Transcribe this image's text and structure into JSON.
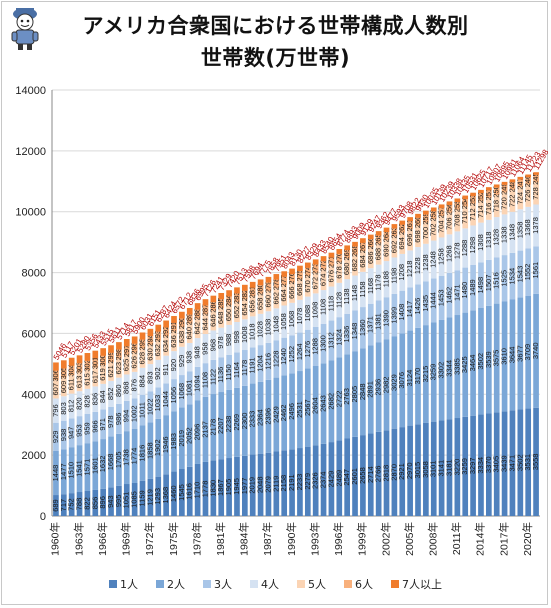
{
  "header": {
    "title_line1": "アメリカ合衆国における世帯構成人数別",
    "title_line2": "世帯数(万世帯)"
  },
  "chart_data": {
    "type": "bar",
    "stacked": true,
    "unit": "万世帯",
    "categories": [
      1960,
      1961,
      1962,
      1963,
      1964,
      1965,
      1966,
      1967,
      1968,
      1969,
      1970,
      1971,
      1972,
      1973,
      1974,
      1975,
      1976,
      1977,
      1978,
      1979,
      1980,
      1981,
      1982,
      1983,
      1984,
      1985,
      1986,
      1987,
      1988,
      1989,
      1990,
      1991,
      1992,
      1993,
      1994,
      1995,
      1996,
      1997,
      1998,
      1999,
      2000,
      2001,
      2002,
      2003,
      2004,
      2005,
      2006,
      2007,
      2008,
      2009,
      2010,
      2011,
      2012,
      2013,
      2014,
      2015,
      2016,
      2017,
      2018,
      2019,
      2020,
      2021
    ],
    "x_tick_labels": [
      "1960年",
      "1963年",
      "1966年",
      "1969年",
      "1972年",
      "1975年",
      "1978年",
      "1981年",
      "1984年",
      "1987年",
      "1990年",
      "1993年",
      "1996年",
      "1999年",
      "2002年",
      "2005年",
      "2008年",
      "2011年",
      "2014年",
      "2017年",
      "2020年"
    ],
    "y_ticks": [
      "0",
      "2000",
      "4000",
      "6000",
      "8000",
      "10000",
      "12000",
      "14000"
    ],
    "ylim": [
      0,
      14000
    ],
    "grid": true,
    "legend_position": "bottom",
    "series": [
      {
        "name": "1人",
        "color": "#4f81bd",
        "values": [
          689,
          717,
          752,
          788,
          822,
          856,
          896,
          943,
          995,
          1051,
          1085,
          1159,
          1219,
          1293,
          1368,
          1460,
          1545,
          1616,
          1710,
          1778,
          1830,
          1867,
          1905,
          1945,
          1977,
          2019,
          2048,
          2079,
          2119,
          2158,
          2191,
          2233,
          2279,
          2326,
          2374,
          2429,
          2489,
          2547,
          2601,
          2658,
          2714,
          2766,
          2818,
          2870,
          2921,
          2970,
          3015,
          3058,
          3101,
          3141,
          3181,
          3220,
          3259,
          3297,
          3334,
          3370,
          3405,
          3439,
          3471,
          3502,
          3531,
          3558
        ]
      },
      {
        "name": "2人",
        "color": "#7ba7d7",
        "values": [
          1448,
          1477,
          1510,
          1541,
          1571,
          1601,
          1632,
          1668,
          1705,
          1738,
          1774,
          1816,
          1858,
          1902,
          1946,
          1983,
          2019,
          2052,
          2096,
          2137,
          2178,
          2207,
          2238,
          2269,
          2300,
          2333,
          2364,
          2396,
          2429,
          2462,
          2496,
          2531,
          2567,
          2604,
          2643,
          2682,
          2722,
          2763,
          2805,
          2848,
          2891,
          2936,
          2982,
          3029,
          3076,
          3124,
          3170,
          3215,
          3259,
          3302,
          3344,
          3385,
          3425,
          3464,
          3502,
          3539,
          3575,
          3610,
          3644,
          3677,
          3709,
          3740
        ]
      },
      {
        "name": "3人",
        "color": "#a9c6e8",
        "values": [
          929,
          938,
          947,
          953,
          959,
          966,
          971,
          978,
          986,
          994,
          1002,
          1011,
          1022,
          1033,
          1044,
          1056,
          1068,
          1081,
          1094,
          1108,
          1122,
          1136,
          1150,
          1164,
          1178,
          1191,
          1204,
          1216,
          1228,
          1240,
          1252,
          1264,
          1276,
          1288,
          1300,
          1312,
          1324,
          1336,
          1348,
          1360,
          1371,
          1381,
          1390,
          1399,
          1408,
          1417,
          1426,
          1435,
          1444,
          1453,
          1462,
          1471,
          1480,
          1489,
          1498,
          1507,
          1516,
          1525,
          1534,
          1543,
          1552,
          1561
        ]
      },
      {
        "name": "4人",
        "color": "#d5e2f2",
        "values": [
          796,
          803,
          812,
          820,
          828,
          836,
          844,
          852,
          860,
          868,
          876,
          884,
          893,
          902,
          911,
          920,
          929,
          938,
          948,
          958,
          968,
          978,
          988,
          998,
          1008,
          1018,
          1028,
          1038,
          1048,
          1058,
          1068,
          1078,
          1088,
          1098,
          1108,
          1118,
          1128,
          1138,
          1148,
          1158,
          1168,
          1178,
          1188,
          1198,
          1208,
          1218,
          1228,
          1238,
          1248,
          1258,
          1268,
          1278,
          1288,
          1298,
          1308,
          1318,
          1328,
          1338,
          1348,
          1358,
          1368,
          1378
        ]
      },
      {
        "name": "5人",
        "color": "#fbd4b4",
        "values": [
          607,
          609,
          611,
          613,
          615,
          617,
          619,
          621,
          623,
          625,
          626,
          628,
          630,
          632,
          634,
          636,
          638,
          640,
          642,
          644,
          646,
          648,
          650,
          652,
          654,
          656,
          658,
          660,
          662,
          664,
          666,
          668,
          670,
          672,
          674,
          676,
          678,
          680,
          682,
          684,
          686,
          688,
          690,
          692,
          694,
          696,
          698,
          700,
          702,
          704,
          706,
          708,
          710,
          712,
          714,
          716,
          718,
          720,
          722,
          724,
          726,
          728
        ]
      },
      {
        "name": "6人",
        "color": "#f8b07c",
        "values": [
          306,
          305,
          304,
          303,
          302,
          301,
          300,
          299,
          298,
          297,
          296,
          295,
          294,
          293,
          292,
          291,
          290,
          289,
          288,
          287,
          286,
          285,
          284,
          283,
          282,
          281,
          280,
          279,
          278,
          277,
          276,
          275,
          274,
          273,
          272,
          271,
          270,
          269,
          268,
          267,
          266,
          265,
          264,
          263,
          262,
          261,
          260,
          259,
          258,
          257,
          256,
          255,
          254,
          253,
          252,
          251,
          250,
          249,
          248,
          247,
          246,
          245
        ]
      },
      {
        "name": "7人以上",
        "color": "#f07c2c",
        "values": [
          271,
          268,
          265,
          262,
          259,
          256,
          253,
          250,
          247,
          244,
          241,
          238,
          235,
          232,
          229,
          226,
          223,
          220,
          217,
          214,
          211,
          208,
          205,
          202,
          199,
          196,
          193,
          190,
          187,
          184,
          181,
          178,
          175,
          172,
          169,
          166,
          163,
          160,
          157,
          154,
          151,
          148,
          145,
          142,
          139,
          136,
          133,
          130,
          127,
          124,
          121,
          118,
          115,
          112,
          109,
          106,
          103,
          100,
          97,
          94,
          91,
          88
        ]
      }
    ],
    "totals_color": "#b30000"
  }
}
